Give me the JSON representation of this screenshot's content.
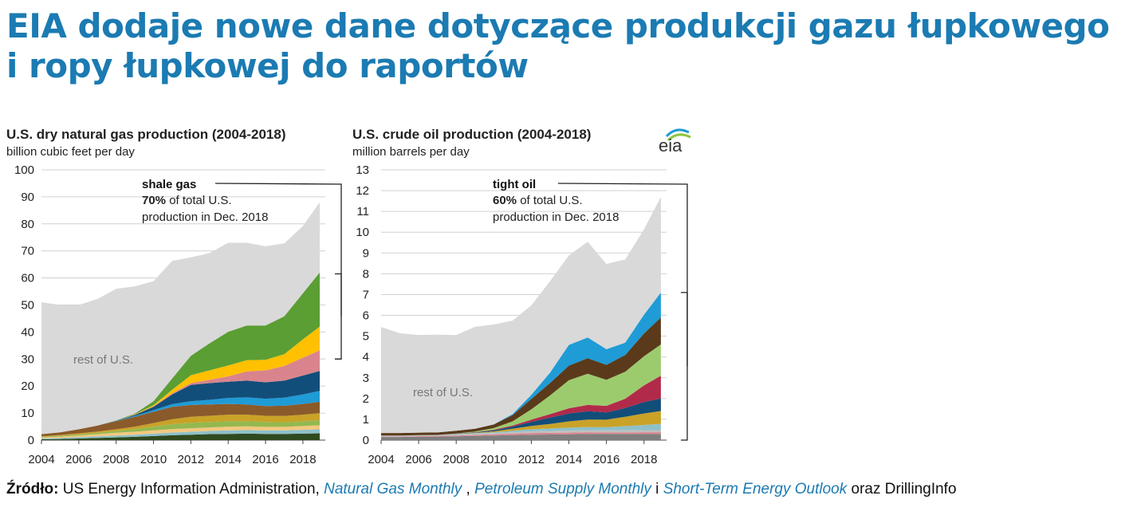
{
  "headline": "EIA dodaje nowe dane dotyczące produkcji gazu łupkowego i ropy łupkowej do raportów",
  "source": {
    "label": "Źródło:",
    "text1": " US Energy Information Administration, ",
    "ref1": "Natural Gas Monthly",
    "sep1": " , ",
    "ref2": "Petroleum Supply Monthly",
    "sep2": " i ",
    "ref3": "Short-Term Energy Outlook",
    "text2": " oraz DrillingInfo"
  },
  "logo_text": "eia",
  "colors": {
    "accent": "#1b7bb2",
    "rest": "#d9d9d9",
    "grid": "#d0d0d0"
  },
  "chart_data": [
    {
      "type": "area",
      "title": "U.S. dry natural gas production (2004-2018)",
      "subtitle": "billion cubic feet per day",
      "x": [
        2004,
        2005,
        2006,
        2007,
        2008,
        2009,
        2010,
        2011,
        2012,
        2013,
        2014,
        2015,
        2016,
        2017,
        2018,
        2018.9
      ],
      "xticks": [
        "2004",
        "2006",
        "2008",
        "2010",
        "2012",
        "2014",
        "2016",
        "2018"
      ],
      "xtick_values": [
        2004,
        2006,
        2008,
        2010,
        2012,
        2014,
        2016,
        2018
      ],
      "yticks": [
        "0",
        "10",
        "20",
        "30",
        "40",
        "50",
        "60",
        "70",
        "80",
        "90",
        "100"
      ],
      "ylim": [
        0,
        100
      ],
      "xlim": [
        2004,
        2019.2
      ],
      "series": [
        {
          "color": "#2f4a1f",
          "values": [
            0.3,
            0.4,
            0.6,
            0.8,
            1.0,
            1.2,
            1.5,
            1.8,
            2.0,
            2.2,
            2.3,
            2.4,
            2.3,
            2.3,
            2.4,
            2.5
          ]
        },
        {
          "color": "#8ec0c9",
          "values": [
            0.3,
            0.4,
            0.5,
            0.6,
            0.7,
            0.8,
            0.9,
            1.0,
            1.1,
            1.2,
            1.3,
            1.3,
            1.3,
            1.3,
            1.4,
            1.5
          ]
        },
        {
          "color": "#f2c87f",
          "values": [
            0.4,
            0.5,
            0.6,
            0.8,
            1.0,
            1.1,
            1.2,
            1.3,
            1.3,
            1.3,
            1.4,
            1.4,
            1.3,
            1.3,
            1.4,
            1.5
          ]
        },
        {
          "color": "#94b84f",
          "values": [
            0.2,
            0.3,
            0.4,
            0.5,
            0.7,
            1.0,
            1.4,
            1.8,
            2.0,
            2.0,
            2.0,
            1.9,
            1.8,
            1.7,
            1.8,
            1.9
          ]
        },
        {
          "color": "#c9a227",
          "values": [
            0.2,
            0.3,
            0.4,
            0.5,
            0.6,
            0.9,
            1.3,
            1.8,
            2.2,
            2.3,
            2.4,
            2.4,
            2.3,
            2.3,
            2.4,
            2.6
          ]
        },
        {
          "color": "#8b5a2b",
          "values": [
            0.8,
            1.0,
            1.5,
            2.2,
            3.0,
            3.6,
            4.2,
            4.6,
            4.4,
            4.2,
            4.0,
            3.8,
            3.6,
            3.8,
            4.0,
            4.2
          ]
        },
        {
          "color": "#1f9bd6",
          "values": [
            0.0,
            0.0,
            0.0,
            0.0,
            0.1,
            0.3,
            0.6,
            1.0,
            1.4,
            1.7,
            2.2,
            2.6,
            2.7,
            3.0,
            3.5,
            4.0
          ]
        },
        {
          "color": "#124e7a",
          "values": [
            0.0,
            0.0,
            0.0,
            0.0,
            0.1,
            0.4,
            1.2,
            3.6,
            6.0,
            6.2,
            6.0,
            6.2,
            6.1,
            6.3,
            7.0,
            7.4
          ]
        },
        {
          "color": "#d9848d",
          "values": [
            0.0,
            0.0,
            0.0,
            0.0,
            0.0,
            0.1,
            0.2,
            0.4,
            0.7,
            1.2,
            2.0,
            3.4,
            4.4,
            5.4,
            6.6,
            7.6
          ]
        },
        {
          "color": "#ffc000",
          "values": [
            0.0,
            0.0,
            0.0,
            0.0,
            0.0,
            0.1,
            0.4,
            1.3,
            2.9,
            3.5,
            4.0,
            4.2,
            3.9,
            4.4,
            6.8,
            8.8
          ]
        },
        {
          "color": "#5a9e34",
          "values": [
            0.0,
            0.0,
            0.0,
            0.0,
            0.1,
            0.3,
            1.5,
            4.2,
            7.2,
            10.0,
            12.5,
            12.8,
            12.7,
            14.0,
            17.0,
            20.0
          ]
        },
        {
          "name": "rest of U.S.",
          "color": "#d9d9d9",
          "values": [
            48.8,
            47.1,
            46.0,
            46.8,
            48.7,
            47.1,
            44.4,
            43.5,
            36.4,
            33.4,
            32.9,
            30.6,
            29.3,
            27.0,
            24.9,
            26.0
          ]
        }
      ],
      "annotations": [
        {
          "bold_label": "shale gas",
          "line1_bold": "70%",
          "line1_rest": " of total U.S.",
          "line2": "production in Dec. 2018"
        },
        {
          "label": "rest of U.S."
        }
      ],
      "bracket": [
        30,
        61.5
      ]
    },
    {
      "type": "area",
      "title": "U.S. crude oil production (2004-2018)",
      "subtitle": "million barrels per day",
      "x": [
        2004,
        2005,
        2006,
        2007,
        2008,
        2009,
        2010,
        2011,
        2012,
        2013,
        2014,
        2015,
        2016,
        2017,
        2018,
        2018.9
      ],
      "xticks": [
        "2004",
        "2006",
        "2008",
        "2010",
        "2012",
        "2014",
        "2016",
        "2018"
      ],
      "xtick_values": [
        2004,
        2006,
        2008,
        2010,
        2012,
        2014,
        2016,
        2018
      ],
      "yticks": [
        "0",
        "1",
        "2",
        "3",
        "4",
        "5",
        "6",
        "7",
        "8",
        "9",
        "10",
        "11",
        "12",
        "13"
      ],
      "ylim": [
        0,
        13
      ],
      "xlim": [
        2004,
        2019.2
      ],
      "series": [
        {
          "color": "#7f7f7f",
          "values": [
            0.15,
            0.15,
            0.16,
            0.17,
            0.18,
            0.2,
            0.22,
            0.24,
            0.26,
            0.27,
            0.28,
            0.3,
            0.3,
            0.3,
            0.3,
            0.3
          ]
        },
        {
          "color": "#d9848d",
          "values": [
            0.02,
            0.02,
            0.03,
            0.03,
            0.04,
            0.05,
            0.06,
            0.07,
            0.08,
            0.08,
            0.08,
            0.08,
            0.07,
            0.07,
            0.08,
            0.08
          ]
        },
        {
          "color": "#bfbfbf",
          "values": [
            0.05,
            0.05,
            0.05,
            0.05,
            0.06,
            0.06,
            0.06,
            0.07,
            0.08,
            0.09,
            0.1,
            0.1,
            0.1,
            0.1,
            0.1,
            0.1
          ]
        },
        {
          "color": "#8ec0c9",
          "values": [
            0.0,
            0.0,
            0.0,
            0.0,
            0.01,
            0.02,
            0.04,
            0.07,
            0.1,
            0.12,
            0.14,
            0.15,
            0.15,
            0.2,
            0.25,
            0.3
          ]
        },
        {
          "color": "#c9a227",
          "values": [
            0.0,
            0.0,
            0.0,
            0.0,
            0.01,
            0.02,
            0.04,
            0.1,
            0.16,
            0.22,
            0.3,
            0.36,
            0.36,
            0.45,
            0.55,
            0.62
          ]
        },
        {
          "color": "#124e7a",
          "values": [
            0.0,
            0.0,
            0.0,
            0.0,
            0.01,
            0.02,
            0.05,
            0.1,
            0.2,
            0.3,
            0.38,
            0.4,
            0.35,
            0.42,
            0.55,
            0.6
          ]
        },
        {
          "color": "#b22a4a",
          "values": [
            0.0,
            0.0,
            0.0,
            0.0,
            0.0,
            0.01,
            0.03,
            0.05,
            0.1,
            0.17,
            0.25,
            0.3,
            0.32,
            0.45,
            0.8,
            1.1
          ]
        },
        {
          "color": "#9ccb6e",
          "values": [
            0.0,
            0.0,
            0.0,
            0.0,
            0.01,
            0.03,
            0.08,
            0.2,
            0.5,
            0.9,
            1.35,
            1.5,
            1.25,
            1.3,
            1.4,
            1.5
          ]
        },
        {
          "color": "#5a3a1a",
          "values": [
            0.12,
            0.12,
            0.12,
            0.12,
            0.13,
            0.14,
            0.17,
            0.3,
            0.5,
            0.6,
            0.7,
            0.75,
            0.72,
            0.8,
            1.1,
            1.3
          ]
        },
        {
          "color": "#1f9bd6",
          "values": [
            0.0,
            0.0,
            0.0,
            0.0,
            0.0,
            0.0,
            0.01,
            0.05,
            0.2,
            0.5,
            1.0,
            1.0,
            0.75,
            0.6,
            0.9,
            1.2
          ]
        },
        {
          "name": "rest of U.S.",
          "color": "#d9d9d9",
          "values": [
            5.1,
            4.8,
            4.7,
            4.7,
            4.6,
            4.9,
            4.8,
            4.5,
            4.3,
            4.4,
            4.3,
            4.6,
            4.1,
            4.0,
            4.1,
            4.6
          ]
        }
      ],
      "annotations": [
        {
          "bold_label": "tight oil",
          "line1_bold": "60%",
          "line1_rest": " of total U.S.",
          "line2": "production in Dec. 2018"
        },
        {
          "label": "rest of U.S."
        }
      ],
      "bracket": [
        0,
        7.1
      ]
    }
  ]
}
